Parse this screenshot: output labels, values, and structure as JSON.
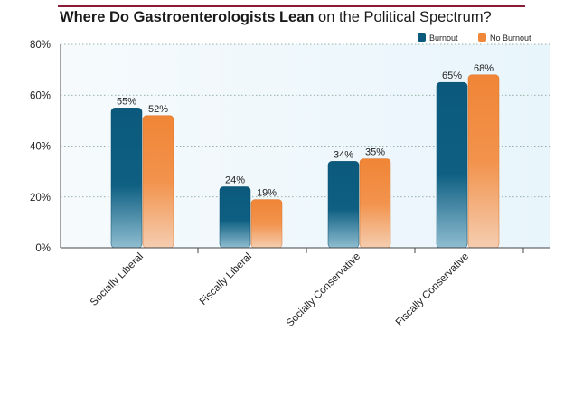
{
  "chart_data": {
    "type": "bar",
    "title_bold": "Where Do Gastroenterologists Lean",
    "title_rest": " on the Political Spectrum?",
    "categories": [
      "Socially Liberal",
      "Fiscally Liberal",
      "Socially Conservative",
      "Fiscally Conservative"
    ],
    "series": [
      {
        "name": "Burnout",
        "values": [
          55,
          24,
          34,
          65
        ],
        "color": "#0b5a7d"
      },
      {
        "name": "No Burnout",
        "values": [
          52,
          19,
          35,
          68
        ],
        "color": "#f0883a"
      }
    ],
    "value_suffix": "%",
    "ylim": [
      0,
      80
    ],
    "yticks": [
      "0%",
      "20%",
      "40%",
      "60%",
      "80%"
    ],
    "ytick_values": [
      0,
      20,
      40,
      60,
      80
    ],
    "grid": true,
    "legend_position": "top-right"
  }
}
